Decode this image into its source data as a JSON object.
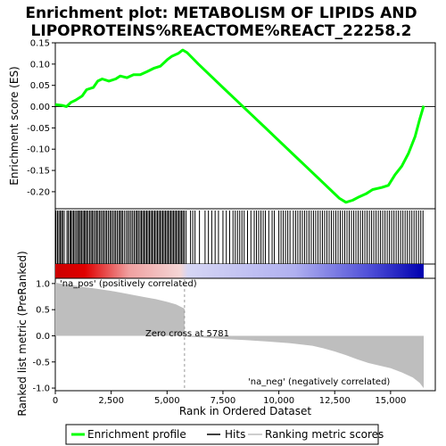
{
  "chart_data": {
    "type": "line",
    "title_lines": [
      "Enrichment plot: METABOLISM OF LIPIDS AND",
      "LIPOPROTEINS%REACTOME%REACT_22258.2"
    ],
    "top_panel": {
      "ylabel": "Enrichment score (ES)",
      "ylim": [
        -0.24,
        0.15
      ],
      "yticks": [
        "0.15",
        "0.10",
        "0.05",
        "0.00",
        "-0.05",
        "-0.10",
        "-0.15",
        "-0.20"
      ],
      "ytick_values": [
        0.15,
        0.1,
        0.05,
        0.0,
        -0.05,
        -0.1,
        -0.15,
        -0.2
      ],
      "series": [
        {
          "name": "Enrichment profile",
          "color": "#00ff00",
          "x": [
            0,
            300,
            500,
            700,
            900,
            1200,
            1400,
            1700,
            1900,
            2100,
            2400,
            2700,
            2900,
            3200,
            3500,
            3800,
            4100,
            4400,
            4700,
            5000,
            5200,
            5500,
            5700,
            5900,
            6400,
            7000,
            7600,
            8200,
            8800,
            9400,
            10000,
            10600,
            11200,
            11800,
            12300,
            12700,
            13000,
            13300,
            13600,
            13900,
            14200,
            14600,
            14900,
            15200,
            15500,
            15800,
            16100,
            16300,
            16480
          ],
          "y": [
            0.005,
            0.003,
            0.0,
            0.01,
            0.015,
            0.025,
            0.04,
            0.045,
            0.06,
            0.065,
            0.06,
            0.065,
            0.072,
            0.068,
            0.075,
            0.075,
            0.082,
            0.09,
            0.095,
            0.11,
            0.118,
            0.125,
            0.133,
            0.127,
            0.1,
            0.07,
            0.04,
            0.01,
            -0.02,
            -0.05,
            -0.08,
            -0.11,
            -0.14,
            -0.17,
            -0.195,
            -0.215,
            -0.225,
            -0.22,
            -0.212,
            -0.205,
            -0.195,
            -0.19,
            -0.185,
            -0.16,
            -0.14,
            -0.11,
            -0.07,
            -0.03,
            0.002
          ]
        }
      ]
    },
    "hits_panel": {
      "series_name": "Hits",
      "hit_positions": [
        30,
        100,
        160,
        220,
        280,
        330,
        400,
        520,
        580,
        650,
        700,
        760,
        820,
        880,
        950,
        1010,
        1070,
        1120,
        1180,
        1240,
        1300,
        1350,
        1410,
        1470,
        1540,
        1600,
        1660,
        1720,
        1790,
        1850,
        1910,
        1980,
        2040,
        2110,
        2170,
        2240,
        2300,
        2370,
        2440,
        2500,
        2570,
        2640,
        2700,
        2770,
        2840,
        2900,
        2960,
        3020,
        3100,
        3180,
        3250,
        3320,
        3390,
        3460,
        3530,
        3600,
        3660,
        3720,
        3790,
        3850,
        3910,
        3970,
        4030,
        4090,
        4150,
        4210,
        4270,
        4330,
        4390,
        4450,
        4510,
        4570,
        4630,
        4690,
        4750,
        4810,
        4870,
        4930,
        4990,
        5050,
        5110,
        5170,
        5230,
        5290,
        5350,
        5410,
        5470,
        5530,
        5590,
        5650,
        5710,
        5770,
        5850,
        6050,
        6150,
        6250,
        6450,
        6700,
        6850,
        7000,
        7150,
        7300,
        7500,
        7650,
        7800,
        7950,
        8050,
        8150,
        8250,
        8350,
        8450,
        8600,
        8750,
        8900,
        9000,
        9100,
        9200,
        9300,
        9400,
        9550,
        9700,
        9800,
        10000,
        10100,
        10200,
        10300,
        10400,
        10500,
        10650,
        10750,
        10850,
        10950,
        11050,
        11150,
        11250,
        11350,
        11450,
        11550,
        11650,
        11750,
        11850,
        11950,
        12050,
        12150,
        12250,
        12350,
        12450,
        12550,
        12650,
        12750,
        12850,
        12950,
        13050,
        13150,
        13250,
        13350,
        13450,
        13550,
        13650,
        13750,
        13850,
        13950,
        14050,
        14150,
        14250,
        14350,
        14450,
        14550,
        14650,
        14750,
        14850,
        14950,
        15050,
        15150,
        15250,
        15350,
        15450,
        15550,
        15650,
        15750,
        15850,
        15950,
        16050,
        16150,
        16250,
        16350,
        16450
      ]
    },
    "bottom_panel": {
      "series_name": "Ranking metric scores",
      "ylabel": "Ranked list metric (PreRanked)",
      "ylim": [
        -1.05,
        1.1
      ],
      "yticks": [
        "1.0",
        "0.5",
        "0.0",
        "-0.5",
        "-1.0"
      ],
      "ytick_values": [
        1.0,
        0.5,
        0.0,
        -0.5,
        -1.0
      ],
      "metric_x": [
        0,
        200,
        500,
        1000,
        1500,
        2000,
        2500,
        3000,
        3500,
        4000,
        4500,
        5000,
        5400,
        5781,
        5782,
        6500,
        7500,
        8500,
        9500,
        10500,
        11500,
        12000,
        12500,
        13000,
        13500,
        14000,
        14500,
        15000,
        15500,
        16000,
        16300,
        16480
      ],
      "metric_y": [
        1.02,
        1.0,
        0.98,
        0.95,
        0.92,
        0.89,
        0.86,
        0.82,
        0.78,
        0.74,
        0.7,
        0.65,
        0.6,
        0.52,
        -0.01,
        -0.03,
        -0.06,
        -0.08,
        -0.11,
        -0.14,
        -0.19,
        -0.24,
        -0.3,
        -0.37,
        -0.45,
        -0.52,
        -0.57,
        -0.62,
        -0.7,
        -0.8,
        -0.9,
        -1.0
      ],
      "annotations": {
        "pos_label": "'na_pos' (positively correlated)",
        "neg_label": "'na_neg' (negatively correlated)",
        "zero_cross": "Zero cross at 5781"
      },
      "zero_cross_x": 5781
    },
    "xlabel": "Rank in Ordered Dataset",
    "xlim": [
      0,
      17000
    ],
    "xticks": [
      "0",
      "2,500",
      "5,000",
      "7,500",
      "10,000",
      "12,500",
      "15,000"
    ],
    "xtick_values": [
      0,
      2500,
      5000,
      7500,
      10000,
      12500,
      15000
    ],
    "n_genes": 16480,
    "legend": {
      "placement": "bottom",
      "items": [
        "Enrichment profile",
        "Hits",
        "Ranking metric scores"
      ]
    },
    "colors": {
      "profile": "#00ff00",
      "hits": "#000000",
      "metric": "#bebebe",
      "pos_label": "#cc0000",
      "neg_label": "#0000cc"
    }
  }
}
